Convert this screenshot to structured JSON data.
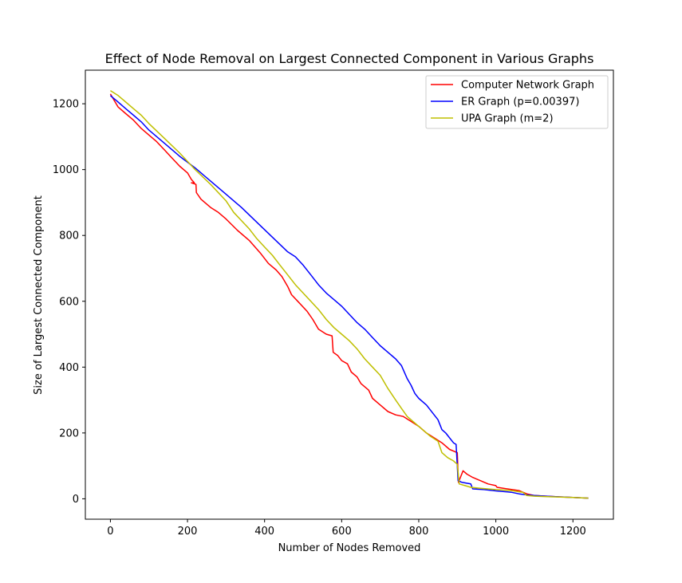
{
  "chart_data": {
    "type": "line",
    "title": "Effect of Node Removal on Largest Connected Component in Various Graphs",
    "xlabel": "Number of Nodes Removed",
    "ylabel": "Size of Largest Connected Component",
    "xlim": [
      -65,
      1305
    ],
    "ylim": [
      -62,
      1302
    ],
    "xticks": [
      0,
      200,
      400,
      600,
      800,
      1000,
      1200
    ],
    "yticks": [
      0,
      200,
      400,
      600,
      800,
      1000,
      1200
    ],
    "grid": false,
    "legend_position": "upper-right",
    "series": [
      {
        "name": "Computer Network Graph",
        "color": "#ff0000",
        "points": [
          [
            0,
            1230
          ],
          [
            10,
            1210
          ],
          [
            20,
            1190
          ],
          [
            40,
            1170
          ],
          [
            60,
            1150
          ],
          [
            80,
            1125
          ],
          [
            100,
            1105
          ],
          [
            120,
            1085
          ],
          [
            140,
            1060
          ],
          [
            160,
            1035
          ],
          [
            180,
            1010
          ],
          [
            200,
            990
          ],
          [
            210,
            970
          ],
          [
            218,
            960
          ],
          [
            210,
            960
          ],
          [
            222,
            955
          ],
          [
            223,
            930
          ],
          [
            235,
            910
          ],
          [
            260,
            885
          ],
          [
            280,
            870
          ],
          [
            300,
            850
          ],
          [
            330,
            815
          ],
          [
            360,
            785
          ],
          [
            390,
            745
          ],
          [
            410,
            715
          ],
          [
            430,
            695
          ],
          [
            445,
            675
          ],
          [
            460,
            645
          ],
          [
            470,
            620
          ],
          [
            490,
            595
          ],
          [
            510,
            570
          ],
          [
            525,
            545
          ],
          [
            540,
            515
          ],
          [
            560,
            500
          ],
          [
            575,
            495
          ],
          [
            578,
            445
          ],
          [
            590,
            435
          ],
          [
            600,
            420
          ],
          [
            615,
            410
          ],
          [
            625,
            385
          ],
          [
            640,
            370
          ],
          [
            650,
            350
          ],
          [
            670,
            330
          ],
          [
            680,
            305
          ],
          [
            700,
            285
          ],
          [
            720,
            265
          ],
          [
            740,
            255
          ],
          [
            760,
            250
          ],
          [
            780,
            235
          ],
          [
            800,
            220
          ],
          [
            820,
            200
          ],
          [
            840,
            185
          ],
          [
            860,
            170
          ],
          [
            880,
            150
          ],
          [
            900,
            140
          ],
          [
            903,
            50
          ],
          [
            915,
            85
          ],
          [
            925,
            75
          ],
          [
            940,
            65
          ],
          [
            960,
            55
          ],
          [
            980,
            45
          ],
          [
            1000,
            40
          ],
          [
            1003,
            35
          ],
          [
            1030,
            30
          ],
          [
            1060,
            25
          ],
          [
            1080,
            15
          ],
          [
            1100,
            10
          ],
          [
            1130,
            8
          ],
          [
            1160,
            6
          ],
          [
            1200,
            4
          ],
          [
            1240,
            2
          ]
        ]
      },
      {
        "name": "ER Graph (p=0.00397)",
        "color": "#0000ff",
        "points": [
          [
            0,
            1225
          ],
          [
            20,
            1205
          ],
          [
            40,
            1185
          ],
          [
            60,
            1165
          ],
          [
            80,
            1145
          ],
          [
            100,
            1120
          ],
          [
            140,
            1080
          ],
          [
            180,
            1040
          ],
          [
            220,
            1005
          ],
          [
            260,
            965
          ],
          [
            300,
            925
          ],
          [
            340,
            885
          ],
          [
            380,
            840
          ],
          [
            420,
            795
          ],
          [
            460,
            750
          ],
          [
            480,
            735
          ],
          [
            500,
            710
          ],
          [
            520,
            680
          ],
          [
            540,
            650
          ],
          [
            560,
            625
          ],
          [
            580,
            605
          ],
          [
            600,
            585
          ],
          [
            620,
            560
          ],
          [
            640,
            535
          ],
          [
            660,
            515
          ],
          [
            680,
            490
          ],
          [
            700,
            465
          ],
          [
            720,
            445
          ],
          [
            740,
            425
          ],
          [
            755,
            405
          ],
          [
            770,
            365
          ],
          [
            780,
            345
          ],
          [
            790,
            320
          ],
          [
            800,
            305
          ],
          [
            820,
            285
          ],
          [
            840,
            255
          ],
          [
            850,
            240
          ],
          [
            860,
            210
          ],
          [
            870,
            200
          ],
          [
            880,
            185
          ],
          [
            890,
            170
          ],
          [
            897,
            165
          ],
          [
            902,
            55
          ],
          [
            912,
            50
          ],
          [
            935,
            45
          ],
          [
            940,
            30
          ],
          [
            970,
            28
          ],
          [
            1000,
            24
          ],
          [
            1040,
            20
          ],
          [
            1060,
            15
          ],
          [
            1080,
            12
          ],
          [
            1100,
            10
          ],
          [
            1130,
            8
          ],
          [
            1160,
            6
          ],
          [
            1200,
            4
          ],
          [
            1240,
            2
          ]
        ]
      },
      {
        "name": "UPA Graph (m=2)",
        "color": "#bfbf00",
        "points": [
          [
            0,
            1240
          ],
          [
            20,
            1225
          ],
          [
            40,
            1205
          ],
          [
            60,
            1185
          ],
          [
            80,
            1165
          ],
          [
            100,
            1140
          ],
          [
            140,
            1095
          ],
          [
            180,
            1050
          ],
          [
            220,
            1000
          ],
          [
            260,
            955
          ],
          [
            300,
            905
          ],
          [
            320,
            870
          ],
          [
            340,
            845
          ],
          [
            360,
            820
          ],
          [
            380,
            790
          ],
          [
            400,
            765
          ],
          [
            420,
            740
          ],
          [
            440,
            710
          ],
          [
            460,
            680
          ],
          [
            480,
            650
          ],
          [
            500,
            625
          ],
          [
            520,
            600
          ],
          [
            540,
            575
          ],
          [
            560,
            545
          ],
          [
            580,
            520
          ],
          [
            600,
            500
          ],
          [
            620,
            480
          ],
          [
            640,
            455
          ],
          [
            660,
            425
          ],
          [
            680,
            400
          ],
          [
            700,
            375
          ],
          [
            720,
            335
          ],
          [
            740,
            300
          ],
          [
            755,
            275
          ],
          [
            770,
            250
          ],
          [
            790,
            230
          ],
          [
            810,
            210
          ],
          [
            830,
            190
          ],
          [
            850,
            175
          ],
          [
            860,
            140
          ],
          [
            875,
            125
          ],
          [
            890,
            115
          ],
          [
            900,
            105
          ],
          [
            905,
            45
          ],
          [
            920,
            40
          ],
          [
            935,
            35
          ],
          [
            960,
            32
          ],
          [
            1000,
            28
          ],
          [
            1040,
            25
          ],
          [
            1070,
            20
          ],
          [
            1080,
            10
          ],
          [
            1100,
            8
          ],
          [
            1140,
            6
          ],
          [
            1200,
            4
          ],
          [
            1240,
            2
          ]
        ]
      }
    ]
  }
}
